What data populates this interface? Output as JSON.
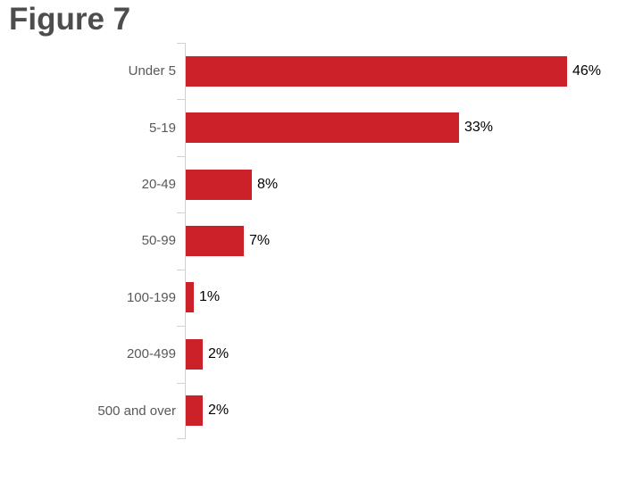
{
  "title": "Figure 7",
  "colors": {
    "bar": "#CC2129",
    "title_text": "#4D4D4D",
    "category_text": "#595959",
    "value_text": "#000000",
    "axis": "#D1D1D1",
    "background": "#FFFFFF"
  },
  "chart_data": {
    "type": "bar",
    "orientation": "horizontal",
    "title": "Figure 7",
    "categories": [
      "Under 5",
      "5-19",
      "20-49",
      "50-99",
      "100-199",
      "200-499",
      "500 and over"
    ],
    "values": [
      46,
      33,
      8,
      7,
      1,
      2,
      2
    ],
    "data_labels": [
      "46%",
      "33%",
      "8%",
      "7%",
      "1%",
      "2%",
      "2%"
    ],
    "xlabel": "",
    "ylabel": "",
    "xlim": [
      0,
      50
    ],
    "grid": false,
    "legend": false,
    "axis_ticks": "category-boundaries-left"
  }
}
